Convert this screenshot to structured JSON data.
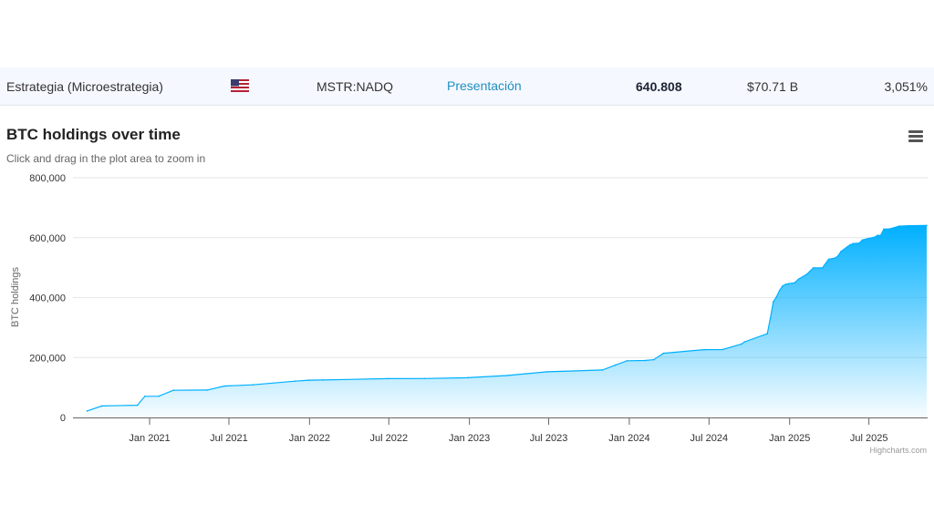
{
  "company_row": {
    "name": "Estrategia (Microestrategia)",
    "flag_icon": "us-flag-icon",
    "ticker": "MSTR:NADQ",
    "link_label": "Presentación",
    "holdings": "640.808",
    "value": "$70.71 B",
    "percent": "3,051%",
    "colors": {
      "row_bg": "#f5f8fe",
      "link": "#1f8fc0"
    }
  },
  "chart": {
    "title": "BTC holdings over time",
    "subtitle": "Click and drag in the plot area to zoom in",
    "credit": "Highcharts.com",
    "menu_icon": "hamburger-menu-icon"
  },
  "chart_data": {
    "type": "area",
    "title": "BTC holdings over time",
    "xlabel": "",
    "ylabel": "BTC holdings",
    "ylim": [
      0,
      800000
    ],
    "yticks": [
      0,
      200000,
      400000,
      600000,
      800000
    ],
    "ytick_labels": [
      "0",
      "200,000",
      "400,000",
      "600,000",
      "800,000"
    ],
    "xticks": [
      "2021-01-01",
      "2021-07-01",
      "2022-01-01",
      "2022-07-01",
      "2023-01-01",
      "2023-07-01",
      "2024-01-01",
      "2024-07-01",
      "2025-01-01",
      "2025-07-01"
    ],
    "xtick_labels": [
      "Jan 2021",
      "Jul 2021",
      "Jan 2022",
      "Jul 2022",
      "Jan 2023",
      "Jul 2023",
      "Jan 2024",
      "Jul 2024",
      "Jan 2025",
      "Jul 2025"
    ],
    "grid": true,
    "legend": "none",
    "color": "#00b0ff",
    "series": [
      {
        "x": [
          "2020-08-11",
          "2020-09-14",
          "2020-12-04",
          "2020-12-21",
          "2021-01-22",
          "2021-02-24",
          "2021-05-13",
          "2021-06-21",
          "2021-08-24",
          "2021-11-29",
          "2021-12-30",
          "2022-02-01",
          "2022-06-29",
          "2022-09-20",
          "2022-12-28",
          "2023-03-27",
          "2023-06-28",
          "2023-11-01",
          "2023-11-30",
          "2023-12-27",
          "2024-02-06",
          "2024-02-26",
          "2024-03-19",
          "2024-06-20",
          "2024-08-01",
          "2024-09-13",
          "2024-09-20",
          "2024-11-11",
          "2024-11-18",
          "2024-11-25",
          "2024-12-02",
          "2024-12-09",
          "2024-12-16",
          "2024-12-23",
          "2024-12-30",
          "2025-01-06",
          "2025-01-13",
          "2025-01-21",
          "2025-02-10",
          "2025-02-24",
          "2025-03-17",
          "2025-03-31",
          "2025-04-14",
          "2025-04-21",
          "2025-04-28",
          "2025-05-12",
          "2025-05-19",
          "2025-05-26",
          "2025-06-02",
          "2025-06-09",
          "2025-06-16",
          "2025-06-30",
          "2025-07-14",
          "2025-07-21",
          "2025-07-28",
          "2025-08-04",
          "2025-08-18",
          "2025-09-08",
          "2025-10-01",
          "2025-11-10"
        ],
        "y": [
          21454,
          38250,
          40824,
          70470,
          70784,
          90531,
          91579,
          105085,
          108992,
          121044,
          124391,
          125051,
          129699,
          130000,
          132500,
          140000,
          152333,
          158400,
          174530,
          189150,
          190000,
          193000,
          214246,
          226331,
          226500,
          244800,
          252220,
          279420,
          331200,
          386700,
          402100,
          423650,
          439000,
          444262,
          446400,
          447470,
          450000,
          461000,
          478740,
          499096,
          499226,
          528185,
          531644,
          538200,
          553555,
          568840,
          576230,
          580250,
          580955,
          582000,
          592100,
          597325,
          601550,
          607770,
          607770,
          628791,
          629376,
          638460,
          640031,
          640808
        ]
      }
    ]
  }
}
